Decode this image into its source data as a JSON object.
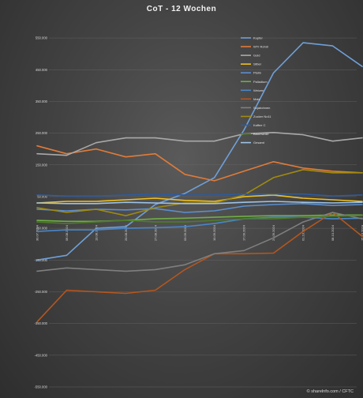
{
  "chart_data": {
    "type": "line",
    "title": "CoT - 12 Wochen",
    "credit": "© sharelnfo.com / CFTC",
    "ylim": [
      -550000,
      600000
    ],
    "yticks": [
      550000,
      450000,
      350000,
      250000,
      150000,
      50000,
      -50000,
      -150000,
      -250000,
      -350000,
      -450000,
      -550000
    ],
    "ytick_labels": [
      "550.000",
      "450.000",
      "350.000",
      "250.000",
      "150.000",
      "50.000",
      "-50.000",
      "-150.000",
      "-250.000",
      "-350.000",
      "-450.000",
      "-550.000"
    ],
    "x": [
      "30.07.2024",
      "06.08.2024",
      "13.08.2024",
      "20.08.2024",
      "27.08.2024",
      "03.09.2024",
      "10.09.2024",
      "17.09.2024",
      "24.09.2024",
      "01.10.2024",
      "08.10.2024",
      "15.10.2024"
    ],
    "legend_position": "top-right",
    "grid": true,
    "series": [
      {
        "name": "Kupfer",
        "color": "#6f9fd8",
        "values": [
          -150000,
          -135000,
          -50000,
          -45000,
          25000,
          60000,
          110000,
          260000,
          440000,
          535000,
          525000,
          460000
        ]
      },
      {
        "name": "WTI Rohöl",
        "color": "#e07b39",
        "values": [
          210000,
          185000,
          200000,
          175000,
          185000,
          120000,
          100000,
          130000,
          160000,
          140000,
          130000,
          125000
        ]
      },
      {
        "name": "Gold",
        "color": "#a9a9a9",
        "values": [
          185000,
          180000,
          220000,
          235000,
          235000,
          225000,
          225000,
          248000,
          252000,
          245000,
          225000,
          235000
        ]
      },
      {
        "name": "Silber",
        "color": "#f0c020",
        "values": [
          30000,
          35000,
          35000,
          40000,
          45000,
          38000,
          35000,
          50000,
          55000,
          45000,
          40000,
          35000
        ]
      },
      {
        "name": "Platin",
        "color": "#5b8fd0",
        "values": [
          10000,
          5000,
          10000,
          8000,
          12000,
          0,
          5000,
          20000,
          25000,
          28000,
          22000,
          25000
        ]
      },
      {
        "name": "Palladium",
        "color": "#70ad47",
        "values": [
          -25000,
          -28000,
          -28000,
          -25000,
          -20000,
          -18000,
          -15000,
          -12000,
          -10000,
          -10000,
          -8000,
          -8000
        ]
      },
      {
        "name": "Weizen",
        "color": "#4a86c8",
        "values": [
          -60000,
          -55000,
          -55000,
          -50000,
          -48000,
          -45000,
          -35000,
          -20000,
          -15000,
          -15000,
          -20000,
          -18000
        ]
      },
      {
        "name": "Mais",
        "color": "#b5561e",
        "values": [
          -345000,
          -245000,
          -250000,
          -255000,
          -245000,
          -180000,
          -130000,
          -130000,
          -128000,
          -60000,
          0,
          -75000
        ]
      },
      {
        "name": "Sojabohnen",
        "color": "#7f7f7f",
        "values": [
          -185000,
          -175000,
          -180000,
          -185000,
          -180000,
          -165000,
          -130000,
          -120000,
          -80000,
          -30000,
          0,
          -20000
        ]
      },
      {
        "name": "Zucker No11",
        "color": "#a08a10",
        "values": [
          15000,
          0,
          10000,
          -10000,
          15000,
          30000,
          30000,
          55000,
          110000,
          135000,
          125000,
          125000
        ]
      },
      {
        "name": "Kaffee C",
        "color": "#2f5b9c",
        "values": [
          55000,
          52000,
          52000,
          55000,
          58000,
          55000,
          55000,
          58000,
          58000,
          58000,
          52000,
          55000
        ]
      },
      {
        "name": "Baumwolle",
        "color": "#4e7a2a",
        "values": [
          -30000,
          -35000,
          -30000,
          -25000,
          -30000,
          -30000,
          -25000,
          -20000,
          -20000,
          -15000,
          -12000,
          -10000
        ]
      },
      {
        "name": "Gesamt",
        "color": "#9dc3e6",
        "values": [
          30000,
          28000,
          28000,
          32000,
          30000,
          28000,
          28000,
          32000,
          35000,
          32000,
          30000,
          32000
        ]
      }
    ]
  }
}
